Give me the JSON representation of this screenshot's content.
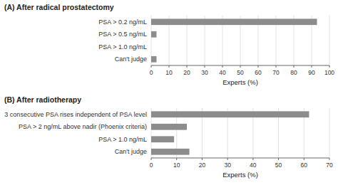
{
  "chart_data": [
    {
      "type": "bar",
      "orientation": "horizontal",
      "title": "(A)  After radical prostatectomy",
      "categories": [
        "PSA > 0.2 ng/mL",
        "PSA > 0.5 ng/mL",
        "PSA > 1.0 ng/mL",
        "Can't judge"
      ],
      "values": [
        93,
        3,
        0,
        3
      ],
      "color": "#8c8c8c",
      "xlim": [
        0,
        100
      ],
      "xticks": [
        0,
        10,
        20,
        30,
        40,
        50,
        60,
        70,
        80,
        90,
        100
      ],
      "xlabel": "Experts (%)",
      "grid": true
    },
    {
      "type": "bar",
      "orientation": "horizontal",
      "title": "(B)  After radiotherapy",
      "categories": [
        "3 consecutive PSA rises independent of PSA level",
        "PSA > 2 ng/mL above nadir (Phoenix criteria)",
        "PSA > 1.0 ng/mL",
        "Can't judge"
      ],
      "values": [
        62,
        14,
        9,
        15
      ],
      "color": "#8c8c8c",
      "xlim": [
        0,
        70
      ],
      "xticks": [
        0,
        10,
        20,
        30,
        40,
        50,
        60,
        70
      ],
      "xlabel": "Experts (%)",
      "grid": true
    }
  ]
}
